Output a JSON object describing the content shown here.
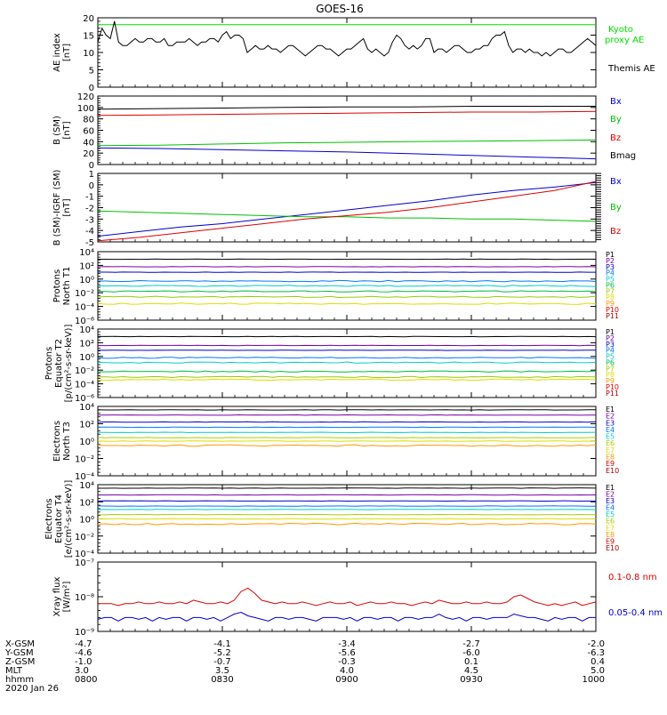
{
  "title": "GOES-16",
  "chart_data": [
    {
      "type": "line",
      "panel": "ae",
      "ylabel": [
        "AE index",
        "[nT]"
      ],
      "ylim": [
        0,
        20
      ],
      "yticks": [
        "0",
        "5",
        "10",
        "15",
        "20"
      ],
      "legend": [
        {
          "label": "Kyoto",
          "color": "#00e000"
        },
        {
          "label": "proxy AE",
          "color": "#00e000"
        },
        {
          "label": "Themis AE",
          "color": "#000000"
        }
      ],
      "series": [
        {
          "name": "Kyoto proxy AE",
          "color": "#00e000",
          "constant": 18
        },
        {
          "name": "Themis AE",
          "color": "#000000",
          "values": [
            13,
            17,
            15,
            14,
            19,
            13,
            12,
            12,
            13,
            14,
            13,
            13,
            14,
            14,
            13,
            13,
            14,
            12,
            12,
            13,
            13,
            13,
            14,
            13,
            12,
            13,
            13,
            14,
            14,
            13,
            15,
            16,
            14,
            15,
            15,
            14,
            10,
            11,
            12,
            11,
            11,
            12,
            11,
            11,
            10,
            11,
            12,
            12,
            11,
            10,
            9,
            10,
            11,
            12,
            12,
            11,
            11,
            10,
            9,
            10,
            11,
            11,
            12,
            13,
            14,
            11,
            10,
            11,
            10,
            9,
            10,
            13,
            15,
            14,
            12,
            11,
            12,
            11,
            12,
            14,
            14,
            10,
            11,
            11,
            10,
            11,
            12,
            12,
            11,
            10,
            10,
            11,
            11,
            12,
            12,
            14,
            15,
            15,
            16,
            12,
            10,
            11,
            11,
            10,
            11,
            10,
            10,
            9,
            10,
            9,
            10,
            11,
            11,
            10,
            10,
            11,
            12,
            13,
            14,
            13,
            12
          ]
        }
      ]
    },
    {
      "type": "line",
      "panel": "bsm",
      "ylabel": [
        "B (SM)",
        "[nT]"
      ],
      "ylim": [
        0,
        120
      ],
      "yticks": [
        "0",
        "20",
        "40",
        "60",
        "80",
        "100",
        "120"
      ],
      "legend": [
        {
          "label": "Bx",
          "color": "#0000cc"
        },
        {
          "label": "By",
          "color": "#00c000"
        },
        {
          "label": "Bz",
          "color": "#dd0000"
        },
        {
          "label": "Bmag",
          "color": "#000000"
        }
      ],
      "series": [
        {
          "name": "Bx",
          "color": "#0000cc",
          "values": [
            29,
            28,
            26,
            24,
            22,
            19,
            16,
            13,
            10
          ]
        },
        {
          "name": "By",
          "color": "#00c000",
          "values": [
            33,
            34,
            36,
            38,
            39,
            40,
            41,
            42,
            43
          ]
        },
        {
          "name": "Bz",
          "color": "#dd0000",
          "values": [
            86,
            87,
            88,
            89,
            90,
            91,
            92,
            92,
            93
          ]
        },
        {
          "name": "Bmag",
          "color": "#000000",
          "values": [
            97,
            98,
            99,
            100,
            101,
            101,
            102,
            102,
            102
          ]
        }
      ]
    },
    {
      "type": "line",
      "panel": "bdiff",
      "ylabel": [
        "B (SM)-IGRF (SM)",
        "[nT]"
      ],
      "ylim": [
        -5,
        1
      ],
      "yticks": [
        "-5",
        "-4",
        "-3",
        "-2",
        "-1",
        "0",
        "1"
      ],
      "legend": [
        {
          "label": "Bx",
          "color": "#0000cc"
        },
        {
          "label": "By",
          "color": "#00c000"
        },
        {
          "label": "Bz",
          "color": "#dd0000"
        }
      ],
      "series": [
        {
          "name": "Bx",
          "color": "#0000cc",
          "values": [
            -4.5,
            -4.1,
            -3.7,
            -3.4,
            -3.0,
            -2.6,
            -2.2,
            -1.8,
            -1.4,
            -0.9,
            -0.5,
            -0.2,
            0.2
          ]
        },
        {
          "name": "By",
          "color": "#00c000",
          "values": [
            -2.3,
            -2.4,
            -2.5,
            -2.6,
            -2.7,
            -2.8,
            -2.8,
            -2.9,
            -2.9,
            -3.0,
            -3.0,
            -3.1,
            -3.2
          ]
        },
        {
          "name": "Bz",
          "color": "#dd0000",
          "values": [
            -4.9,
            -4.6,
            -4.2,
            -3.8,
            -3.4,
            -3.0,
            -2.7,
            -2.4,
            -2.0,
            -1.5,
            -1.0,
            -0.5,
            0.3
          ]
        }
      ]
    },
    {
      "type": "line",
      "panel": "protons-t1",
      "log": true,
      "ylabel": [
        "Protons",
        "North T1"
      ],
      "ylim": [
        -6,
        4
      ],
      "yticks": [
        "10⁻⁶",
        "10⁻⁴",
        "10⁻²",
        "10⁰",
        "10²",
        "10⁴"
      ],
      "legend": [
        {
          "label": "P1",
          "color": "#000000"
        },
        {
          "label": "P2",
          "color": "#7700aa"
        },
        {
          "label": "P3",
          "color": "#0000cc"
        },
        {
          "label": "P4",
          "color": "#0077ff"
        },
        {
          "label": "P5",
          "color": "#00cccc"
        },
        {
          "label": "P6",
          "color": "#00bb44"
        },
        {
          "label": "P7",
          "color": "#99cc00"
        },
        {
          "label": "P8",
          "color": "#dddd00"
        },
        {
          "label": "P9",
          "color": "#ff9900"
        },
        {
          "label": "P10",
          "color": "#dd0000"
        },
        {
          "label": "P11",
          "color": "#aa0000"
        }
      ],
      "series": [
        {
          "name": "P1",
          "color": "#000000",
          "level": 2.9
        },
        {
          "name": "P2",
          "color": "#7700aa",
          "level": 1.8
        },
        {
          "name": "P3",
          "color": "#0000cc",
          "level": 1.0
        },
        {
          "name": "P4",
          "color": "#0077ff",
          "level": -0.3
        },
        {
          "name": "P5",
          "color": "#00cccc",
          "level": -1.0
        },
        {
          "name": "P6",
          "color": "#00bb44",
          "level": -1.8
        },
        {
          "name": "P7",
          "color": "#99cc00",
          "level": -2.6
        },
        {
          "name": "P8",
          "color": "#dddd00",
          "level": -3.6
        }
      ]
    },
    {
      "type": "line",
      "panel": "protons-t2",
      "log": true,
      "ylabel": [
        "Protons",
        "Equator T2",
        "[p/(cm²-s-sr-keV)]"
      ],
      "ylim": [
        -6,
        4
      ],
      "yticks": [
        "10⁻⁶",
        "10⁻⁴",
        "10⁻²",
        "10⁰",
        "10²",
        "10⁴"
      ],
      "legend": [
        {
          "label": "P1",
          "color": "#000000"
        },
        {
          "label": "P2",
          "color": "#7700aa"
        },
        {
          "label": "P3",
          "color": "#0000cc"
        },
        {
          "label": "P4",
          "color": "#0077ff"
        },
        {
          "label": "P5",
          "color": "#00cccc"
        },
        {
          "label": "P6",
          "color": "#00bb44"
        },
        {
          "label": "P7",
          "color": "#99cc00"
        },
        {
          "label": "P8",
          "color": "#dddd00"
        },
        {
          "label": "P9",
          "color": "#ff9900"
        },
        {
          "label": "P10",
          "color": "#dd0000"
        },
        {
          "label": "P11",
          "color": "#aa0000"
        }
      ],
      "series": [
        {
          "name": "P1",
          "color": "#000000",
          "level": 2.9
        },
        {
          "name": "P2",
          "color": "#7700aa",
          "level": 1.6
        },
        {
          "name": "P3",
          "color": "#0000cc",
          "level": 0.9
        },
        {
          "name": "P4",
          "color": "#0077ff",
          "level": -0.2
        },
        {
          "name": "P5",
          "color": "#00cccc",
          "level": -0.9
        },
        {
          "name": "P6",
          "color": "#00bb44",
          "level": -2.2
        },
        {
          "name": "P7",
          "color": "#99cc00",
          "level": -3.0
        },
        {
          "name": "P8",
          "color": "#dddd00",
          "level": -3.4
        }
      ]
    },
    {
      "type": "line",
      "panel": "electrons-t3",
      "log": true,
      "ylabel": [
        "Electrons",
        "North T3"
      ],
      "ylim": [
        -4,
        4
      ],
      "yticks": [
        "10⁻⁴",
        "10⁻²",
        "10⁰",
        "10²",
        "10⁴"
      ],
      "legend": [
        {
          "label": "E1",
          "color": "#000000"
        },
        {
          "label": "E2",
          "color": "#7700aa"
        },
        {
          "label": "E3",
          "color": "#0000cc"
        },
        {
          "label": "E4",
          "color": "#0077ff"
        },
        {
          "label": "E5",
          "color": "#00cccc"
        },
        {
          "label": "E6",
          "color": "#aacc00"
        },
        {
          "label": "E7",
          "color": "#dddd00"
        },
        {
          "label": "E8",
          "color": "#ff9900"
        },
        {
          "label": "E9",
          "color": "#dd0000"
        },
        {
          "label": "E10",
          "color": "#aa0000"
        }
      ],
      "series": [
        {
          "name": "E1",
          "color": "#000000",
          "level": 3.6
        },
        {
          "name": "E2",
          "color": "#7700aa",
          "level": 3.0
        },
        {
          "name": "E3",
          "color": "#0000cc",
          "level": 2.2
        },
        {
          "name": "E4",
          "color": "#0077ff",
          "level": 1.6
        },
        {
          "name": "E5",
          "color": "#00cccc",
          "level": 1.0
        },
        {
          "name": "E6",
          "color": "#aacc00",
          "level": 0.4
        },
        {
          "name": "E7",
          "color": "#dddd00",
          "level": 0.0
        },
        {
          "name": "E8",
          "color": "#ff9900",
          "level": -0.5
        }
      ]
    },
    {
      "type": "line",
      "panel": "electrons-t4",
      "log": true,
      "ylabel": [
        "Electrons",
        "Equator T4",
        "[e/(cm²-s-sr-keV)]"
      ],
      "ylim": [
        -4,
        4
      ],
      "yticks": [
        "10⁻⁴",
        "10⁻²",
        "10⁰",
        "10²",
        "10⁴"
      ],
      "legend": [
        {
          "label": "E1",
          "color": "#000000"
        },
        {
          "label": "E2",
          "color": "#7700aa"
        },
        {
          "label": "E3",
          "color": "#0000cc"
        },
        {
          "label": "E4",
          "color": "#0077ff"
        },
        {
          "label": "E5",
          "color": "#00cccc"
        },
        {
          "label": "E6",
          "color": "#aacc00"
        },
        {
          "label": "E7",
          "color": "#dddd00"
        },
        {
          "label": "E8",
          "color": "#ff9900"
        },
        {
          "label": "E9",
          "color": "#dd0000"
        },
        {
          "label": "E10",
          "color": "#aa0000"
        }
      ],
      "series": [
        {
          "name": "E1",
          "color": "#000000",
          "level": 3.6
        },
        {
          "name": "E2",
          "color": "#7700aa",
          "level": 2.8
        },
        {
          "name": "E3",
          "color": "#0000cc",
          "level": 2.1
        },
        {
          "name": "E4",
          "color": "#0077ff",
          "level": 1.5
        },
        {
          "name": "E5",
          "color": "#00cccc",
          "level": 1.1
        },
        {
          "name": "E6",
          "color": "#aacc00",
          "level": 0.5
        },
        {
          "name": "E7",
          "color": "#dddd00",
          "level": 0.0
        },
        {
          "name": "E8",
          "color": "#ff9900",
          "level": -0.6
        }
      ]
    },
    {
      "type": "line",
      "panel": "xray",
      "log": true,
      "ylabel": [
        "Xray flux",
        "[W/m²]"
      ],
      "ylim": [
        -9,
        -7
      ],
      "yticks": [
        "10⁻⁹",
        "10⁻⁸",
        "10⁻⁷"
      ],
      "legend": [
        {
          "label": "0.1-0.8 nm",
          "color": "#dd0000"
        },
        {
          "label": "0.05-0.4 nm",
          "color": "#0000cc"
        }
      ],
      "series": [
        {
          "name": "0.1-0.8 nm",
          "color": "#dd0000",
          "values": [
            -8.2,
            -8.2,
            -8.2,
            -8.25,
            -8.2,
            -8.2,
            -8.15,
            -8.2,
            -8.2,
            -8.15,
            -8.2,
            -8.2,
            -8.15,
            -8.2,
            -8.1,
            -8.15,
            -8.2,
            -8.2,
            -8.15,
            -8.2,
            -8.1,
            -7.85,
            -7.75,
            -7.9,
            -8.1,
            -8.15,
            -8.2,
            -8.15,
            -8.2,
            -8.2,
            -8.15,
            -8.2,
            -8.25,
            -8.2,
            -8.15,
            -8.2,
            -8.2,
            -8.15,
            -8.25,
            -8.2,
            -8.15,
            -8.2,
            -8.2,
            -8.15,
            -8.2,
            -8.2,
            -8.25,
            -8.2,
            -8.15,
            -8.2,
            -8.1,
            -8.15,
            -8.2,
            -8.2,
            -8.15,
            -8.2,
            -8.2,
            -8.15,
            -8.2,
            -8.2,
            -8.15,
            -8.0,
            -7.95,
            -8.05,
            -8.15,
            -8.2,
            -8.25,
            -8.2,
            -8.25,
            -8.2,
            -8.15,
            -8.25,
            -8.2,
            -8.15
          ]
        },
        {
          "name": "0.05-0.4 nm",
          "color": "#0000cc",
          "values": [
            -8.65,
            -8.6,
            -8.6,
            -8.7,
            -8.6,
            -8.6,
            -8.65,
            -8.6,
            -8.7,
            -8.6,
            -8.65,
            -8.6,
            -8.6,
            -8.7,
            -8.6,
            -8.6,
            -8.65,
            -8.6,
            -8.7,
            -8.6,
            -8.5,
            -8.45,
            -8.55,
            -8.6,
            -8.65,
            -8.7,
            -8.6,
            -8.6,
            -8.65,
            -8.6,
            -8.6,
            -8.65,
            -8.7,
            -8.6,
            -8.6,
            -8.6,
            -8.65,
            -8.6,
            -8.7,
            -8.6,
            -8.6,
            -8.65,
            -8.6,
            -8.6,
            -8.7,
            -8.6,
            -8.6,
            -8.65,
            -8.6,
            -8.6,
            -8.5,
            -8.6,
            -8.65,
            -8.6,
            -8.7,
            -8.6,
            -8.6,
            -8.65,
            -8.6,
            -8.6,
            -8.6,
            -8.5,
            -8.55,
            -8.6,
            -8.6,
            -8.65,
            -8.7,
            -8.6,
            -8.65,
            -8.6,
            -8.6,
            -8.7,
            -8.6,
            -8.6
          ]
        }
      ]
    }
  ],
  "axis_table": {
    "rows": [
      {
        "label": "X-GSM",
        "values": [
          "-4.7",
          "-4.1",
          "-3.4",
          "-2.7",
          "-2.0"
        ]
      },
      {
        "label": "Y-GSM",
        "values": [
          "-4.6",
          "-5.2",
          "-5.6",
          "-6.0",
          "-6.3"
        ]
      },
      {
        "label": "Z-GSM",
        "values": [
          "-1.0",
          "-0.7",
          "-0.3",
          "0.1",
          "0.4"
        ]
      },
      {
        "label": "MLT",
        "values": [
          "3.0",
          "3.5",
          "4.0",
          "4.5",
          "5.0"
        ]
      },
      {
        "label": "hhmm",
        "values": [
          "0800",
          "0830",
          "0900",
          "0930",
          "1000"
        ]
      }
    ],
    "date": "2020 Jan 26"
  }
}
